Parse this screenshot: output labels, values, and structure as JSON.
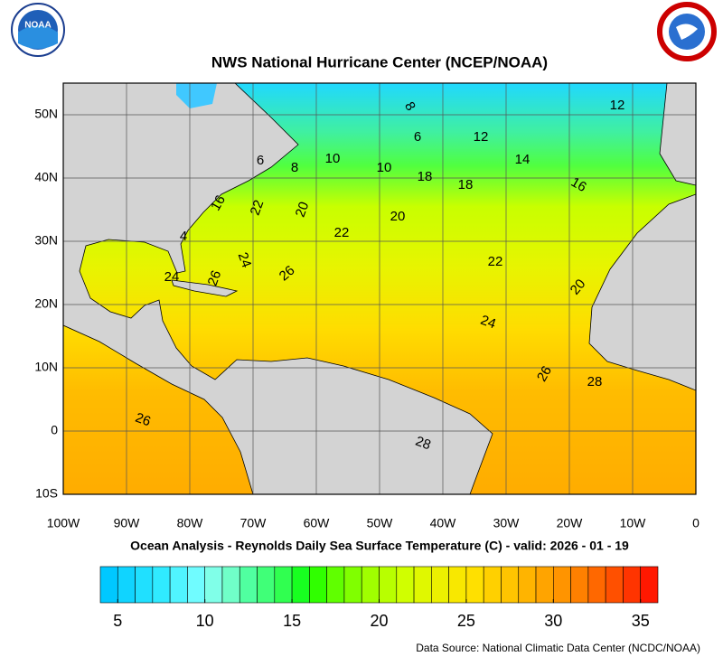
{
  "header": {
    "title": "NWS National Hurricane Center (NCEP/NOAA)",
    "logo_text": "NOAA"
  },
  "map": {
    "xlim": [
      -100,
      0
    ],
    "ylim": [
      -10,
      55
    ],
    "xticks": [
      {
        "value": -100,
        "label": "100W"
      },
      {
        "value": -90,
        "label": "90W"
      },
      {
        "value": -80,
        "label": "80W"
      },
      {
        "value": -70,
        "label": "70W"
      },
      {
        "value": -60,
        "label": "60W"
      },
      {
        "value": -50,
        "label": "50W"
      },
      {
        "value": -40,
        "label": "40W"
      },
      {
        "value": -30,
        "label": "30W"
      },
      {
        "value": -20,
        "label": "20W"
      },
      {
        "value": -10,
        "label": "10W"
      },
      0
    ],
    "yticks": [
      {
        "value": -10,
        "label": "10S"
      },
      0,
      {
        "value": 10,
        "label": "10N"
      },
      {
        "value": 20,
        "label": "20N"
      },
      {
        "value": 30,
        "label": "30N"
      },
      {
        "value": 40,
        "label": "40N"
      },
      {
        "value": 50,
        "label": "50N"
      }
    ],
    "contour_labels": [
      "12",
      "8",
      "6",
      "12",
      "14",
      "6",
      "8",
      "10",
      "10",
      "18",
      "18",
      "16",
      "16",
      "22",
      "20",
      "20",
      "22",
      "4",
      "24",
      "26",
      "24",
      "26",
      "22",
      "20",
      "24",
      "26",
      "28",
      "26",
      "28"
    ]
  },
  "subtitle": "Ocean Analysis - Reynolds Daily Sea Surface Temperature (C) - valid: 2026 - 01 - 19",
  "colorbar": {
    "range": [
      4,
      36
    ],
    "ticks": [
      5,
      10,
      15,
      20,
      25,
      30,
      35
    ],
    "colors": [
      "#00c8ff",
      "#10d4ff",
      "#20e0ff",
      "#30eaff",
      "#50f4ff",
      "#70fcff",
      "#80ffe8",
      "#70ffc8",
      "#50ffa0",
      "#40ff78",
      "#30ff50",
      "#18ff20",
      "#30ff00",
      "#60ff00",
      "#80ff00",
      "#a0ff00",
      "#b8ff00",
      "#d0ff00",
      "#e0f800",
      "#ecf000",
      "#f8e800",
      "#ffe000",
      "#ffd000",
      "#ffc400",
      "#ffb400",
      "#ffa400",
      "#ff9400",
      "#ff8000",
      "#ff6800",
      "#ff5000",
      "#ff3400",
      "#ff1800"
    ]
  },
  "footer": {
    "source": "Data Source: National Climatic Data Center (NCDC/NOAA)"
  }
}
